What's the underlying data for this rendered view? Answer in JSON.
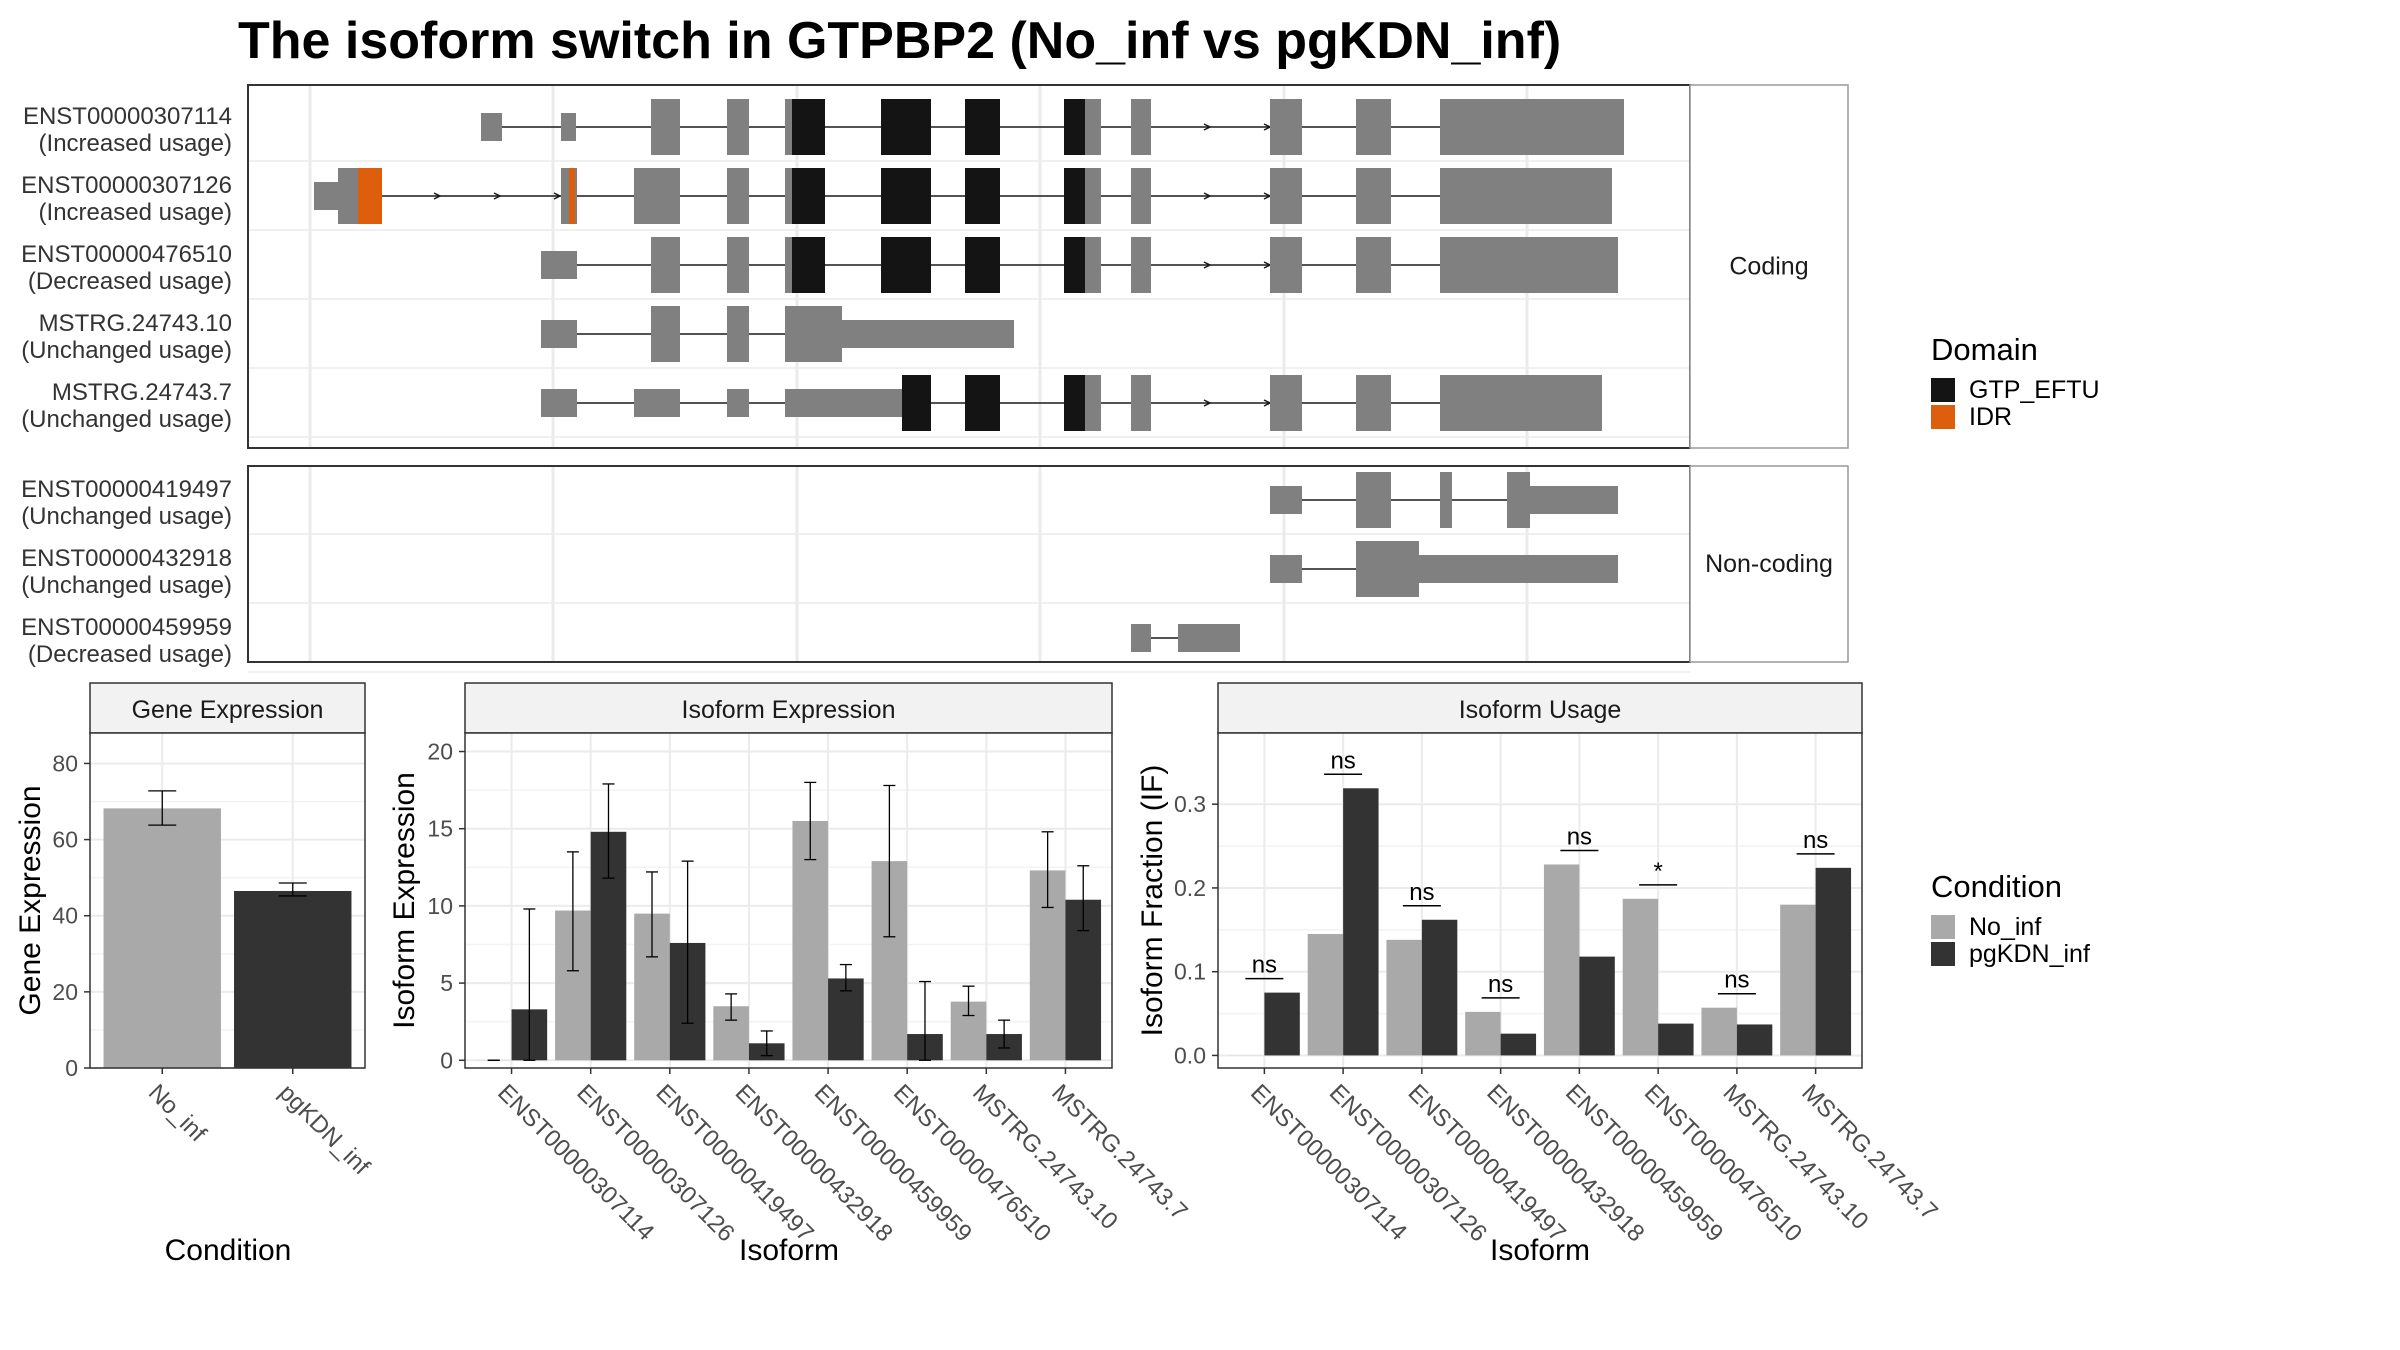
{
  "title": "The isoform switch in GTPBP2 (No_inf vs pgKDN_inf)",
  "colors": {
    "utr": "#808080",
    "GTP_EFTU": "#141414",
    "IDR": "#dd5f0e",
    "No_inf": "#a9a9a9",
    "pgKDN_inf": "#333333",
    "strip": "#f2f2f2",
    "grid": "#ebebeb"
  },
  "domain_legend": {
    "title": "Domain",
    "items": [
      {
        "name": "GTP_EFTU",
        "color": "#141414"
      },
      {
        "name": "IDR",
        "color": "#dd5f0e"
      }
    ]
  },
  "condition_legend": {
    "title": "Condition",
    "items": [
      {
        "name": "No_inf",
        "color": "#a9a9a9"
      },
      {
        "name": "pgKDN_inf",
        "color": "#333333"
      }
    ]
  },
  "transcript_panels": [
    {
      "strip": "Coding",
      "rows": [
        {
          "id": "ENST00000307114",
          "usage": "(Increased usage)"
        },
        {
          "id": "ENST00000307126",
          "usage": "(Increased usage)"
        },
        {
          "id": "ENST00000476510",
          "usage": "(Decreased usage)"
        },
        {
          "id": "MSTRG.24743.10",
          "usage": "(Unchanged usage)"
        },
        {
          "id": "MSTRG.24743.7",
          "usage": "(Unchanged usage)"
        }
      ]
    },
    {
      "strip": "Non-coding",
      "rows": [
        {
          "id": "ENST00000419497",
          "usage": "(Unchanged usage)"
        },
        {
          "id": "ENST00000432918",
          "usage": "(Unchanged usage)"
        },
        {
          "id": "ENST00000459959",
          "usage": "(Decreased usage)"
        }
      ]
    }
  ],
  "chart_data": [
    {
      "type": "bar",
      "strip": "Gene Expression",
      "xlabel": "Condition",
      "ylabel": "Gene Expression",
      "ylim": [
        0,
        88
      ],
      "yticks": [
        0,
        20,
        40,
        60,
        80
      ],
      "categories": [
        "No_inf",
        "pgKDN_inf"
      ],
      "series": [
        {
          "name": "No_inf",
          "values": [
            68.2,
            null
          ],
          "err_low": [
            63.8,
            null
          ],
          "err_high": [
            72.8,
            null
          ]
        },
        {
          "name": "pgKDN_inf",
          "values": [
            null,
            46.5
          ],
          "err_low": [
            null,
            45.2
          ],
          "err_high": [
            null,
            48.6
          ]
        }
      ]
    },
    {
      "type": "bar",
      "strip": "Isoform Expression",
      "xlabel": "Isoform",
      "ylabel": "Isoform Expression",
      "ylim": [
        -0.5,
        21.2
      ],
      "yticks": [
        0,
        5,
        10,
        15,
        20
      ],
      "categories": [
        "ENST00000307114",
        "ENST00000307126",
        "ENST00000419497",
        "ENST00000432918",
        "ENST00000459959",
        "ENST00000476510",
        "MSTRG.24743.10",
        "MSTRG.24743.7"
      ],
      "series": [
        {
          "name": "No_inf",
          "values": [
            0.0,
            9.7,
            9.5,
            3.5,
            15.5,
            12.9,
            3.8,
            12.3
          ],
          "err_low": [
            0.0,
            5.8,
            6.7,
            2.6,
            13.0,
            8.0,
            2.9,
            9.9
          ],
          "err_high": [
            0.0,
            13.5,
            12.2,
            4.3,
            18.0,
            17.8,
            4.8,
            14.8
          ]
        },
        {
          "name": "pgKDN_inf",
          "values": [
            3.3,
            14.8,
            7.6,
            1.1,
            5.3,
            1.7,
            1.7,
            10.4
          ],
          "err_low": [
            0.0,
            11.8,
            2.4,
            0.3,
            4.5,
            0.0,
            0.8,
            8.4
          ],
          "err_high": [
            9.8,
            17.9,
            12.9,
            1.9,
            6.2,
            5.1,
            2.6,
            12.6
          ]
        }
      ]
    },
    {
      "type": "bar",
      "strip": "Isoform Usage",
      "xlabel": "Isoform",
      "ylabel": "Isoform Fraction (IF)",
      "ylim": [
        -0.015,
        0.385
      ],
      "yticks": [
        0.0,
        0.1,
        0.2,
        0.3
      ],
      "ytick_labels": [
        "0.0",
        "0.1",
        "0.2",
        "0.3"
      ],
      "categories": [
        "ENST00000307114",
        "ENST00000307126",
        "ENST00000419497",
        "ENST00000432918",
        "ENST00000459959",
        "ENST00000476510",
        "MSTRG.24743.10",
        "MSTRG.24743.7"
      ],
      "series": [
        {
          "name": "No_inf",
          "values": [
            0.0,
            0.145,
            0.138,
            0.052,
            0.228,
            0.187,
            0.057,
            0.18
          ]
        },
        {
          "name": "pgKDN_inf",
          "values": [
            0.075,
            0.319,
            0.162,
            0.026,
            0.118,
            0.038,
            0.037,
            0.224
          ]
        }
      ],
      "significance": [
        "ns",
        "ns",
        "ns",
        "ns",
        "ns",
        "*",
        "ns",
        "ns"
      ]
    }
  ]
}
